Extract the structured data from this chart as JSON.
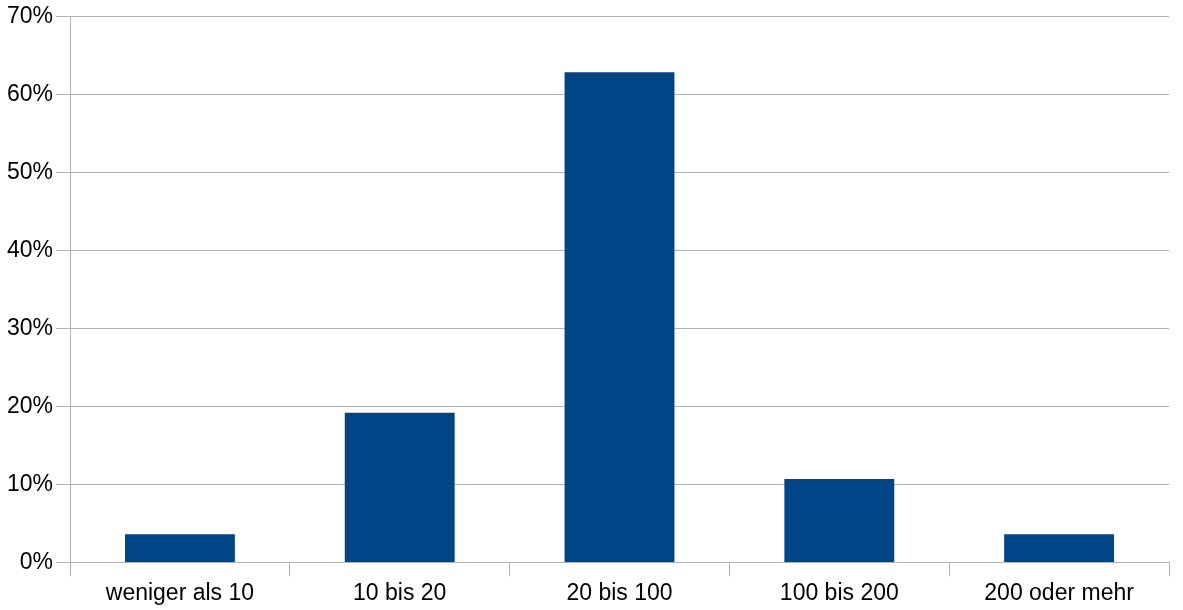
{
  "chart_data": {
    "type": "bar",
    "categories": [
      "weniger als 10",
      "10 bis 20",
      "20 bis 100",
      "100 bis 200",
      "200 oder mehr"
    ],
    "values": [
      3.6,
      19.2,
      62.9,
      10.7,
      3.6
    ],
    "color": "#004586",
    "ylim": [
      0,
      70
    ],
    "yticks": [
      {
        "value": 0,
        "label": "0%"
      },
      {
        "value": 10,
        "label": "10%"
      },
      {
        "value": 20,
        "label": "20%"
      },
      {
        "value": 30,
        "label": "30%"
      },
      {
        "value": 40,
        "label": "40%"
      },
      {
        "value": 50,
        "label": "50%"
      },
      {
        "value": 60,
        "label": "60%"
      },
      {
        "value": 70,
        "label": "70%"
      }
    ],
    "grid": "y",
    "legend": false
  }
}
